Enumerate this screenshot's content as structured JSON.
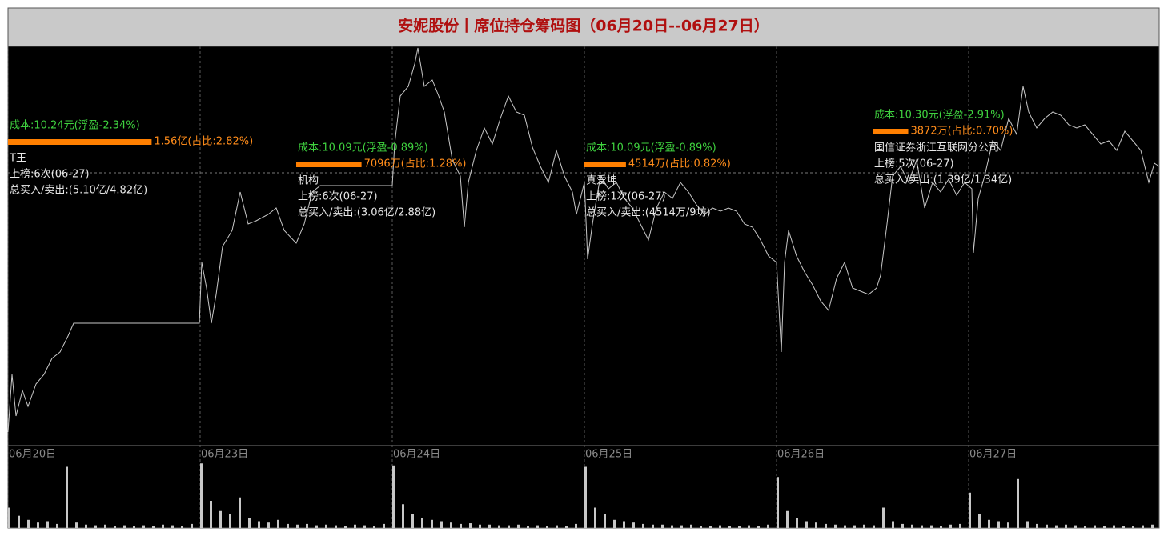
{
  "chart_data": [
    {
      "type": "line",
      "title": "安妮股份丨席位持仓筹码图（06月20日--06月27日）",
      "color": "#c8c8c8",
      "reference_price": 10.41,
      "xlim": [
        0,
        1438
      ],
      "ylim": [
        9.56,
        10.8
      ],
      "x": [
        0,
        5,
        10,
        18,
        25,
        35,
        45,
        55,
        65,
        75,
        82,
        90,
        239,
        242,
        248,
        254,
        260,
        268,
        280,
        290,
        300,
        310,
        325,
        335,
        345,
        360,
        370,
        380,
        390,
        480,
        483,
        490,
        500,
        508,
        512,
        520,
        530,
        538,
        545,
        555,
        565,
        570,
        575,
        585,
        595,
        605,
        615,
        625,
        635,
        645,
        655,
        665,
        675,
        685,
        695,
        705,
        710,
        720,
        724,
        730,
        740,
        750,
        760,
        770,
        780,
        790,
        800,
        810,
        820,
        830,
        840,
        850,
        860,
        870,
        880,
        890,
        900,
        910,
        920,
        930,
        940,
        950,
        960,
        966,
        970,
        975,
        985,
        995,
        1005,
        1015,
        1025,
        1035,
        1045,
        1055,
        1065,
        1075,
        1085,
        1090,
        1098,
        1105,
        1115,
        1125,
        1135,
        1145,
        1155,
        1165,
        1175,
        1185,
        1195,
        1204,
        1206,
        1212,
        1220,
        1230,
        1240,
        1250,
        1260,
        1268,
        1275,
        1285,
        1295,
        1305,
        1315,
        1325,
        1335,
        1345,
        1355,
        1365,
        1375,
        1385,
        1395,
        1405,
        1415,
        1425,
        1432,
        1438
      ],
      "values": [
        9.6,
        9.78,
        9.65,
        9.73,
        9.68,
        9.75,
        9.78,
        9.83,
        9.85,
        9.9,
        9.94,
        9.94,
        9.94,
        10.13,
        10.05,
        9.94,
        10.03,
        10.18,
        10.23,
        10.35,
        10.25,
        10.26,
        10.28,
        10.3,
        10.23,
        10.19,
        10.25,
        10.35,
        10.37,
        10.37,
        10.5,
        10.65,
        10.68,
        10.75,
        10.8,
        10.68,
        10.7,
        10.65,
        10.6,
        10.45,
        10.4,
        10.24,
        10.38,
        10.48,
        10.55,
        10.5,
        10.58,
        10.65,
        10.6,
        10.59,
        10.49,
        10.43,
        10.38,
        10.48,
        10.4,
        10.35,
        10.28,
        10.38,
        10.14,
        10.25,
        10.4,
        10.36,
        10.38,
        10.33,
        10.3,
        10.25,
        10.2,
        10.3,
        10.35,
        10.33,
        10.38,
        10.35,
        10.31,
        10.28,
        10.3,
        10.29,
        10.3,
        10.29,
        10.25,
        10.24,
        10.2,
        10.15,
        10.13,
        9.85,
        10.13,
        10.23,
        10.15,
        10.1,
        10.06,
        10.01,
        9.98,
        10.08,
        10.13,
        10.05,
        10.04,
        10.03,
        10.05,
        10.09,
        10.25,
        10.4,
        10.43,
        10.38,
        10.45,
        10.3,
        10.38,
        10.35,
        10.39,
        10.34,
        10.38,
        10.36,
        10.16,
        10.33,
        10.4,
        10.51,
        10.48,
        10.58,
        10.53,
        10.68,
        10.6,
        10.55,
        10.58,
        10.6,
        10.59,
        10.56,
        10.55,
        10.56,
        10.53,
        10.5,
        10.51,
        10.48,
        10.54,
        10.51,
        10.48,
        10.38,
        10.44,
        10.43
      ],
      "annotations": [
        {
          "cost": "成本:10.24元(浮盈-2.34%)",
          "amount": 15600,
          "amount_label": "1.56亿(占比:2.82%)",
          "name": "T王",
          "rank": "上榜:6次(06-27)",
          "total": "总买入/卖出:(5.10亿/4.82亿)"
        },
        {
          "cost": "成本:10.09元(浮盈-0.89%)",
          "amount": 7096,
          "amount_label": "7096万(占比:1.28%)",
          "name": "机构",
          "rank": "上榜:6次(06-27)",
          "total": "总买入/卖出:(3.06亿/2.88亿)"
        },
        {
          "cost": "成本:10.09元(浮盈-0.89%)",
          "amount": 4514,
          "amount_label": "4514万(占比:0.82%)",
          "name": "真爱坤",
          "rank": "上榜:1次(06-27)",
          "total": "总买入/卖出:(4514万/9坊)"
        },
        {
          "cost": "成本:10.30元(浮盈-2.91%)",
          "amount": 3872,
          "amount_label": "3872万(占比:0.70%)",
          "name": "国信证券浙江互联网分公司",
          "rank": "上榜:5次(06-27)",
          "total": "总买入/卖出:(1.39亿/1.34亿)"
        }
      ]
    },
    {
      "type": "bar",
      "color": "#c8c8c8",
      "xlim": [
        0,
        1438
      ],
      "ylim": [
        0,
        100
      ],
      "xticks": [
        {
          "value": 0,
          "label": "06月20日"
        },
        {
          "value": 240,
          "label": "06月23日"
        },
        {
          "value": 480,
          "label": "06月24日"
        },
        {
          "value": 720,
          "label": "06月25日"
        },
        {
          "value": 960,
          "label": "06月26日"
        },
        {
          "value": 1200,
          "label": "06月27日"
        }
      ],
      "x": [
        0,
        12,
        24,
        36,
        48,
        60,
        72,
        84,
        96,
        108,
        120,
        132,
        144,
        156,
        168,
        180,
        192,
        204,
        216,
        228,
        240,
        252,
        264,
        276,
        288,
        300,
        312,
        324,
        336,
        348,
        360,
        372,
        384,
        396,
        408,
        420,
        432,
        444,
        456,
        468,
        480,
        492,
        504,
        516,
        528,
        540,
        552,
        564,
        576,
        588,
        600,
        612,
        624,
        636,
        648,
        660,
        672,
        684,
        696,
        708,
        720,
        732,
        744,
        756,
        768,
        780,
        792,
        804,
        816,
        828,
        840,
        852,
        864,
        876,
        888,
        900,
        912,
        924,
        936,
        948,
        960,
        972,
        984,
        996,
        1008,
        1020,
        1032,
        1044,
        1056,
        1068,
        1080,
        1092,
        1104,
        1116,
        1128,
        1140,
        1152,
        1164,
        1176,
        1188,
        1200,
        1212,
        1224,
        1236,
        1248,
        1260,
        1272,
        1284,
        1296,
        1308,
        1320,
        1332,
        1344,
        1356,
        1368,
        1380,
        1392,
        1404,
        1416,
        1428
      ],
      "values": [
        30,
        18,
        12,
        8,
        10,
        6,
        90,
        8,
        5,
        4,
        5,
        3,
        4,
        3,
        4,
        3,
        5,
        4,
        3,
        6,
        95,
        40,
        25,
        20,
        45,
        15,
        10,
        8,
        12,
        6,
        5,
        6,
        4,
        5,
        4,
        3,
        5,
        4,
        3,
        6,
        92,
        35,
        20,
        15,
        12,
        10,
        8,
        6,
        7,
        5,
        5,
        4,
        4,
        5,
        3,
        4,
        3,
        4,
        3,
        6,
        90,
        30,
        20,
        12,
        10,
        8,
        6,
        5,
        5,
        4,
        4,
        5,
        3,
        3,
        4,
        3,
        3,
        4,
        3,
        5,
        75,
        25,
        15,
        10,
        8,
        6,
        5,
        4,
        4,
        5,
        4,
        30,
        10,
        6,
        5,
        4,
        4,
        3,
        5,
        6,
        52,
        20,
        12,
        10,
        8,
        72,
        10,
        6,
        5,
        4,
        5,
        4,
        3,
        4,
        3,
        4,
        3,
        3,
        4,
        5
      ]
    }
  ]
}
